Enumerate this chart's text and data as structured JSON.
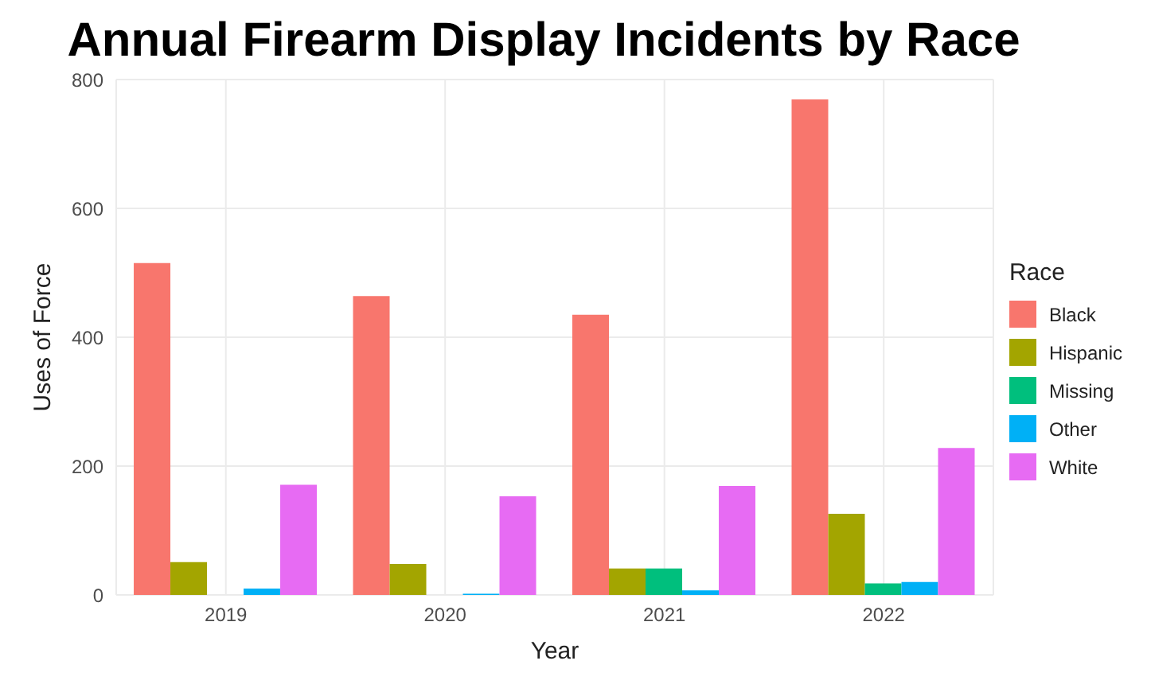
{
  "chart_data": {
    "type": "bar",
    "title": "Annual Firearm Display Incidents by Race",
    "xlabel": "Year",
    "ylabel": "Uses of Force",
    "legend_title": "Race",
    "categories": [
      "2019",
      "2020",
      "2021",
      "2022"
    ],
    "series": [
      {
        "name": "Black",
        "color": "#f8766d",
        "values": [
          515,
          464,
          435,
          769
        ]
      },
      {
        "name": "Hispanic",
        "color": "#a3a500",
        "values": [
          51,
          48,
          41,
          126
        ]
      },
      {
        "name": "Missing",
        "color": "#00bf7d",
        "values": [
          null,
          null,
          41,
          18
        ]
      },
      {
        "name": "Other",
        "color": "#00b0f6",
        "values": [
          10,
          2,
          7,
          20
        ]
      },
      {
        "name": "White",
        "color": "#e76bf3",
        "values": [
          171,
          153,
          169,
          228
        ]
      }
    ],
    "ylim": [
      0,
      800
    ],
    "yticks": [
      0,
      200,
      400,
      600,
      800
    ],
    "grid": true,
    "legend": "right"
  }
}
